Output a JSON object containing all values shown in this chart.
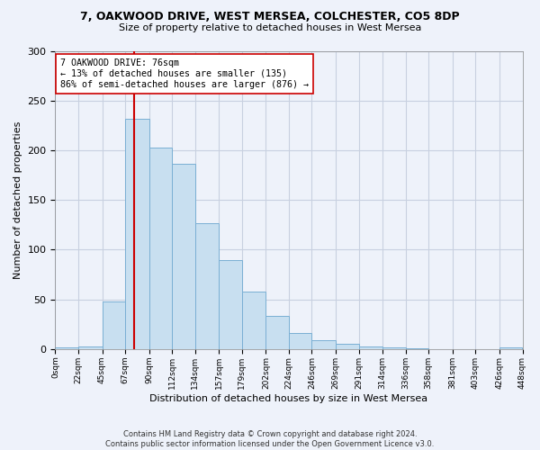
{
  "title_line1": "7, OAKWOOD DRIVE, WEST MERSEA, COLCHESTER, CO5 8DP",
  "title_line2": "Size of property relative to detached houses in West Mersea",
  "xlabel": "Distribution of detached houses by size in West Mersea",
  "ylabel": "Number of detached properties",
  "bar_color": "#c8dff0",
  "bar_edge_color": "#7aafd4",
  "bin_edges": [
    0,
    22,
    45,
    67,
    90,
    112,
    134,
    157,
    179,
    202,
    224,
    246,
    269,
    291,
    314,
    336,
    358,
    381,
    403,
    426,
    448
  ],
  "bar_heights": [
    2,
    3,
    48,
    232,
    203,
    186,
    127,
    90,
    58,
    33,
    16,
    9,
    5,
    3,
    2,
    1,
    0,
    0,
    0,
    2
  ],
  "tick_labels": [
    "0sqm",
    "22sqm",
    "45sqm",
    "67sqm",
    "90sqm",
    "112sqm",
    "134sqm",
    "157sqm",
    "179sqm",
    "202sqm",
    "224sqm",
    "246sqm",
    "269sqm",
    "291sqm",
    "314sqm",
    "336sqm",
    "358sqm",
    "381sqm",
    "403sqm",
    "426sqm",
    "448sqm"
  ],
  "vline_x": 76,
  "vline_color": "#cc0000",
  "annotation_text": "7 OAKWOOD DRIVE: 76sqm\n← 13% of detached houses are smaller (135)\n86% of semi-detached houses are larger (876) →",
  "annotation_box_color": "white",
  "annotation_box_edge": "#cc0000",
  "ylim": [
    0,
    300
  ],
  "yticks": [
    0,
    50,
    100,
    150,
    200,
    250,
    300
  ],
  "footer_line1": "Contains HM Land Registry data © Crown copyright and database right 2024.",
  "footer_line2": "Contains public sector information licensed under the Open Government Licence v3.0.",
  "background_color": "#eef2fa",
  "grid_color": "#c8d0e0"
}
